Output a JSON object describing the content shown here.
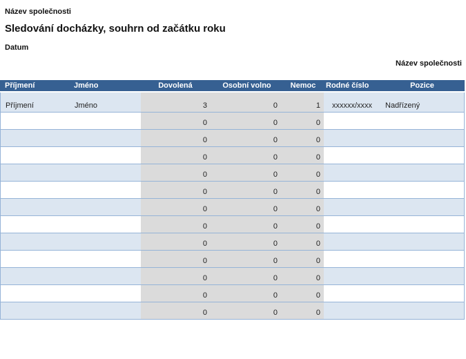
{
  "header": {
    "company_top": "Název společnosti",
    "title": "Sledování docházky, souhrn od začátku roku",
    "date_label": "Datum",
    "company_right": "Název společnosti"
  },
  "colors": {
    "header_bg": "#366092",
    "row_alt": "#DCE6F1",
    "row_border": "#95B3D7",
    "numeric_band": "#DBDBDB",
    "header_text": "#FFFFFF"
  },
  "table": {
    "columns": [
      {
        "key": "prijmeni",
        "label": "Příjmení"
      },
      {
        "key": "jmeno",
        "label": "Jméno"
      },
      {
        "key": "dovolena",
        "label": "Dovolená"
      },
      {
        "key": "osobni-volno",
        "label": "Osobní volno"
      },
      {
        "key": "nemoc",
        "label": "Nemoc"
      },
      {
        "key": "rodne-cislo",
        "label": "Rodné číslo"
      },
      {
        "key": "pozice",
        "label": "Pozice"
      }
    ],
    "rows": [
      [
        "Příjmení",
        "Jméno",
        "3",
        "0",
        "1",
        "xxxxxx/xxxx",
        "Nadřízený"
      ],
      [
        "",
        "",
        "0",
        "0",
        "0",
        "",
        ""
      ],
      [
        "",
        "",
        "0",
        "0",
        "0",
        "",
        ""
      ],
      [
        "",
        "",
        "0",
        "0",
        "0",
        "",
        ""
      ],
      [
        "",
        "",
        "0",
        "0",
        "0",
        "",
        ""
      ],
      [
        "",
        "",
        "0",
        "0",
        "0",
        "",
        ""
      ],
      [
        "",
        "",
        "0",
        "0",
        "0",
        "",
        ""
      ],
      [
        "",
        "",
        "0",
        "0",
        "0",
        "",
        ""
      ],
      [
        "",
        "",
        "0",
        "0",
        "0",
        "",
        ""
      ],
      [
        "",
        "",
        "0",
        "0",
        "0",
        "",
        ""
      ],
      [
        "",
        "",
        "0",
        "0",
        "0",
        "",
        ""
      ],
      [
        "",
        "",
        "0",
        "0",
        "0",
        "",
        ""
      ],
      [
        "",
        "",
        "0",
        "0",
        "0",
        "",
        ""
      ]
    ]
  }
}
